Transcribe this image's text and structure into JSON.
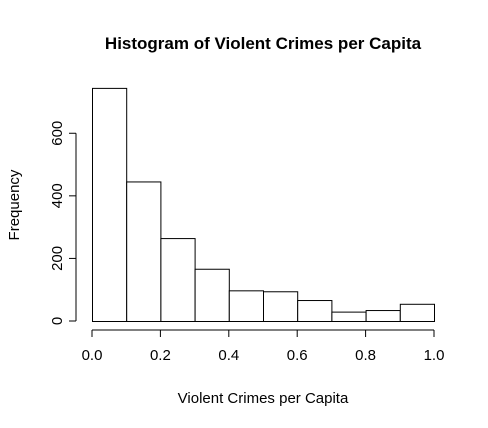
{
  "chart_data": {
    "type": "bar",
    "title": "Histogram of Violent Crimes per Capita",
    "xlabel": "Violent Crimes per Capita",
    "ylabel": "Frequency",
    "bins": [
      {
        "start": 0.0,
        "end": 0.1,
        "count": 745
      },
      {
        "start": 0.1,
        "end": 0.2,
        "count": 446
      },
      {
        "start": 0.2,
        "end": 0.3,
        "count": 265
      },
      {
        "start": 0.3,
        "end": 0.4,
        "count": 167
      },
      {
        "start": 0.4,
        "end": 0.5,
        "count": 98
      },
      {
        "start": 0.5,
        "end": 0.6,
        "count": 95
      },
      {
        "start": 0.6,
        "end": 0.7,
        "count": 67
      },
      {
        "start": 0.7,
        "end": 0.8,
        "count": 30
      },
      {
        "start": 0.8,
        "end": 0.9,
        "count": 35
      },
      {
        "start": 0.9,
        "end": 1.0,
        "count": 55
      }
    ],
    "xlim": [
      0.0,
      1.0
    ],
    "ylim": [
      0,
      745
    ],
    "x_ticks": [
      "0.0",
      "0.2",
      "0.4",
      "0.6",
      "0.8",
      "1.0"
    ],
    "y_ticks": [
      "0",
      "200",
      "400",
      "600"
    ],
    "grid": false,
    "legend": "none",
    "colors": {
      "bar_fill": "#ffffff",
      "bar_stroke": "#000000"
    }
  }
}
